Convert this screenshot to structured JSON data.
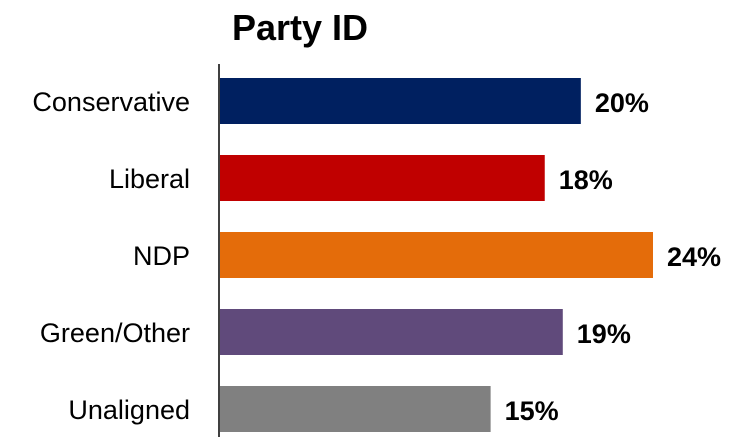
{
  "chart_data": {
    "type": "bar",
    "orientation": "horizontal",
    "title": "Party ID",
    "categories": [
      "Conservative",
      "Liberal",
      "NDP",
      "Green/Other",
      "Unaligned"
    ],
    "values": [
      20,
      18,
      24,
      19,
      15
    ],
    "value_labels": [
      "20%",
      "18%",
      "24%",
      "19%",
      "15%"
    ],
    "colors": [
      "#002060",
      "#C00000",
      "#E46C0A",
      "#604A7B",
      "#808080"
    ],
    "xlabel": "",
    "ylabel": "",
    "xlim": [
      0,
      24
    ],
    "grid": false,
    "legend": "none"
  }
}
